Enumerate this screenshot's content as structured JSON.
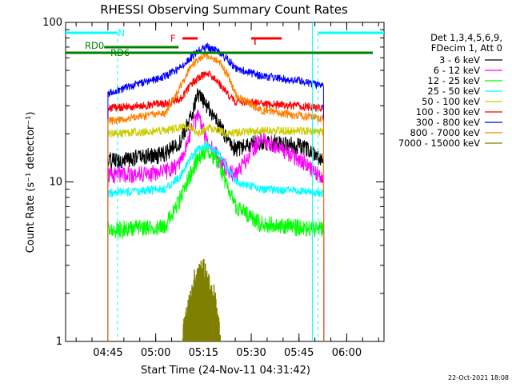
{
  "chart_data": {
    "type": "line",
    "title": "RHESSI Observing Summary Count Rates",
    "xlabel": "Start Time (24-Nov-11 04:31:42)",
    "ylabel": "Count Rate (s⁻¹ detector⁻¹)",
    "x_ticks": [
      "04:45",
      "05:00",
      "05:15",
      "05:30",
      "05:45",
      "06:00"
    ],
    "x_range_minutes": [
      "04:31:42",
      "06:11:42"
    ],
    "y_scale": "log",
    "ylim": [
      1,
      100
    ],
    "y_ticks": [
      "1",
      "10",
      "100"
    ],
    "legend_header": [
      "Det 1,3,4,5,6,9,",
      "FDecim 1, Att 0"
    ],
    "legend_position": "right",
    "series": [
      {
        "name": "3 - 6 keV",
        "color": "#000000",
        "profile": [
          [
            4.75,
            13.5
          ],
          [
            5.05,
            15
          ],
          [
            5.13,
            18
          ],
          [
            5.18,
            25
          ],
          [
            5.22,
            35
          ],
          [
            5.27,
            30
          ],
          [
            5.33,
            23
          ],
          [
            5.38,
            18
          ],
          [
            5.42,
            16
          ],
          [
            5.55,
            18
          ],
          [
            5.75,
            17
          ],
          [
            5.88,
            14
          ]
        ]
      },
      {
        "name": "6 - 12 keV",
        "color": "#ff00ff",
        "profile": [
          [
            4.75,
            11
          ],
          [
            5.05,
            11.5
          ],
          [
            5.13,
            13
          ],
          [
            5.18,
            20
          ],
          [
            5.22,
            26
          ],
          [
            5.27,
            18
          ],
          [
            5.33,
            14
          ],
          [
            5.38,
            12
          ],
          [
            5.42,
            11
          ],
          [
            5.55,
            19
          ],
          [
            5.75,
            14
          ],
          [
            5.88,
            10.5
          ]
        ]
      },
      {
        "name": "12 - 25 keV",
        "color": "#00ff00",
        "profile": [
          [
            4.75,
            5
          ],
          [
            5.05,
            5.3
          ],
          [
            5.13,
            8
          ],
          [
            5.18,
            11
          ],
          [
            5.22,
            14
          ],
          [
            5.27,
            16
          ],
          [
            5.33,
            13
          ],
          [
            5.38,
            9
          ],
          [
            5.42,
            7
          ],
          [
            5.55,
            5.5
          ],
          [
            5.75,
            5.2
          ],
          [
            5.88,
            5.0
          ]
        ]
      },
      {
        "name": "25 - 50 keV",
        "color": "#00ffff",
        "profile": [
          [
            4.75,
            8.5
          ],
          [
            5.05,
            9
          ],
          [
            5.13,
            11
          ],
          [
            5.18,
            14
          ],
          [
            5.22,
            16
          ],
          [
            5.27,
            17
          ],
          [
            5.33,
            15
          ],
          [
            5.38,
            12
          ],
          [
            5.42,
            10
          ],
          [
            5.55,
            9
          ],
          [
            5.75,
            8.8
          ],
          [
            5.88,
            8.5
          ]
        ]
      },
      {
        "name": "50 - 100 keV",
        "color": "#cccc00",
        "profile": [
          [
            4.75,
            20
          ],
          [
            5.05,
            21
          ],
          [
            5.13,
            22
          ],
          [
            5.18,
            22
          ],
          [
            5.22,
            20
          ],
          [
            5.27,
            22
          ],
          [
            5.33,
            21
          ],
          [
            5.38,
            20
          ],
          [
            5.42,
            20.5
          ],
          [
            5.55,
            21
          ],
          [
            5.75,
            21
          ],
          [
            5.88,
            20.5
          ]
        ]
      },
      {
        "name": "100 - 300 keV",
        "color": "#ff0000",
        "profile": [
          [
            4.75,
            29
          ],
          [
            5.05,
            31
          ],
          [
            5.13,
            33
          ],
          [
            5.18,
            40
          ],
          [
            5.22,
            45
          ],
          [
            5.27,
            48
          ],
          [
            5.33,
            42
          ],
          [
            5.38,
            35
          ],
          [
            5.42,
            32
          ],
          [
            5.55,
            31
          ],
          [
            5.75,
            30
          ],
          [
            5.88,
            29
          ]
        ]
      },
      {
        "name": "300 - 800 keV",
        "color": "#0000ff",
        "profile": [
          [
            4.75,
            36
          ],
          [
            5.05,
            46
          ],
          [
            5.13,
            52
          ],
          [
            5.18,
            60
          ],
          [
            5.22,
            66
          ],
          [
            5.27,
            70
          ],
          [
            5.33,
            65
          ],
          [
            5.38,
            58
          ],
          [
            5.42,
            52
          ],
          [
            5.55,
            46
          ],
          [
            5.75,
            43
          ],
          [
            5.88,
            40
          ]
        ]
      },
      {
        "name": "800 - 7000 keV",
        "color": "#ff8000",
        "profile": [
          [
            4.75,
            24
          ],
          [
            5.05,
            27
          ],
          [
            5.13,
            40
          ],
          [
            5.18,
            52
          ],
          [
            5.22,
            58
          ],
          [
            5.27,
            62
          ],
          [
            5.33,
            57
          ],
          [
            5.38,
            46
          ],
          [
            5.42,
            35
          ],
          [
            5.55,
            28
          ],
          [
            5.75,
            26
          ],
          [
            5.88,
            25
          ]
        ]
      },
      {
        "name": "7000 - 15000 keV",
        "color": "#808000",
        "profile": [
          [
            5.14,
            1.1
          ],
          [
            5.2,
            2.5
          ],
          [
            5.25,
            2.9
          ],
          [
            5.3,
            2.2
          ],
          [
            5.34,
            1.1
          ]
        ]
      }
    ],
    "annotations": [
      {
        "label": "N",
        "color": "#00ffff",
        "kind": "night"
      },
      {
        "label": "F",
        "color": "#ff0000",
        "kind": "flare"
      },
      {
        "label": "RD0",
        "color": "#008000",
        "kind": "rate-decimation"
      },
      {
        "label": "RD6",
        "color": "#008000",
        "kind": "rate-decimation"
      }
    ],
    "timestamp": "22-Oct-2021 18:08"
  }
}
